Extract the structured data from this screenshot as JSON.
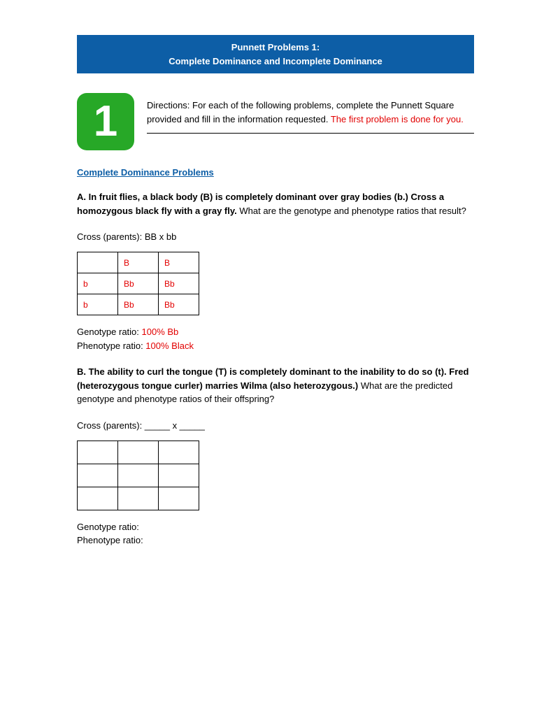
{
  "header": {
    "line1": "Punnett Problems 1:",
    "line2": "Complete Dominance and Incomplete Dominance"
  },
  "badge": {
    "number": "1"
  },
  "directions": {
    "black": "Directions: For each of the following problems, complete the Punnett Square provided and fill in the information requested. ",
    "red": "The first problem is done for you."
  },
  "section_title": "Complete Dominance Problems",
  "problemA": {
    "label": "A. In fruit flies, a black body (B) is completely dominant over gray bodies (b.)  Cross a homozygous black fly with a gray fly.  ",
    "question": "What are the genotype and phenotype ratios that result?",
    "cross_label": "Cross (parents): ",
    "cross_value": "BB x bb",
    "table": {
      "top": [
        "",
        "B",
        "B"
      ],
      "row1": [
        "b",
        "Bb",
        "Bb"
      ],
      "row2": [
        "b",
        "Bb",
        "Bb"
      ]
    },
    "genotype_label": "Genotype ratio: ",
    "genotype_value": "100% Bb",
    "phenotype_label": "Phenotype ratio: ",
    "phenotype_value": "100% Black"
  },
  "problemB": {
    "label": "B. The ability to curl the tongue (T) is completely dominant to the inability to do so (t). Fred (heterozygous tongue curler) marries Wilma (also heterozygous.) ",
    "question": "What are the predicted genotype and phenotype ratios of their offspring?",
    "cross_label": "Cross (parents): _____ x _____",
    "genotype_label": "Genotype ratio:",
    "phenotype_label": "Phenotype ratio:"
  },
  "colors": {
    "header_bg": "#0d5ea6",
    "badge_bg": "#27a827",
    "red_text": "#e20000",
    "link_blue": "#0d5ea6"
  }
}
